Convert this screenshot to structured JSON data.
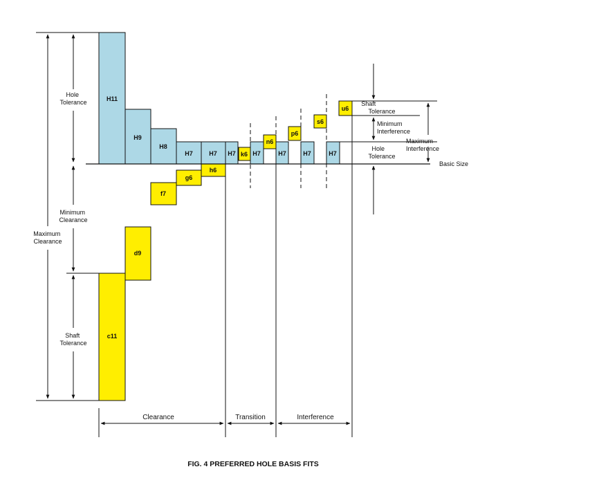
{
  "colors": {
    "hole": "#add8e6",
    "shaft": "#ffee00",
    "line": "#111111"
  },
  "caption": "FIG. 4  PREFERRED HOLE BASIS FITS",
  "left_annotations": {
    "hole_tolerance": [
      "Hole",
      "Tolerance"
    ],
    "minimum_clearance": [
      "Minimum",
      "Clearance"
    ],
    "maximum_clearance": [
      "Maximum",
      "Clearance"
    ],
    "shaft_tolerance": [
      "Shaft",
      "Tolerance"
    ]
  },
  "right_annotations": {
    "shaft_tolerance": [
      "Shaft",
      "Tolerance"
    ],
    "minimum_interference": [
      "Minimum",
      "Interference"
    ],
    "maximum_interference": [
      "Maximum",
      "Interference"
    ],
    "hole_tolerance": [
      "Hole",
      "Tolerance"
    ],
    "basic_size": "Basic Size"
  },
  "zones": [
    "Clearance",
    "Transition",
    "Interference"
  ],
  "hole_blocks": [
    "H11",
    "H9",
    "H8",
    "H7",
    "H7",
    "H7",
    "H7",
    "H7",
    "H7",
    "H7"
  ],
  "shaft_blocks": [
    "c11",
    "d9",
    "f7",
    "g6",
    "h6",
    "k6",
    "n6",
    "p6",
    "s6",
    "u6"
  ]
}
